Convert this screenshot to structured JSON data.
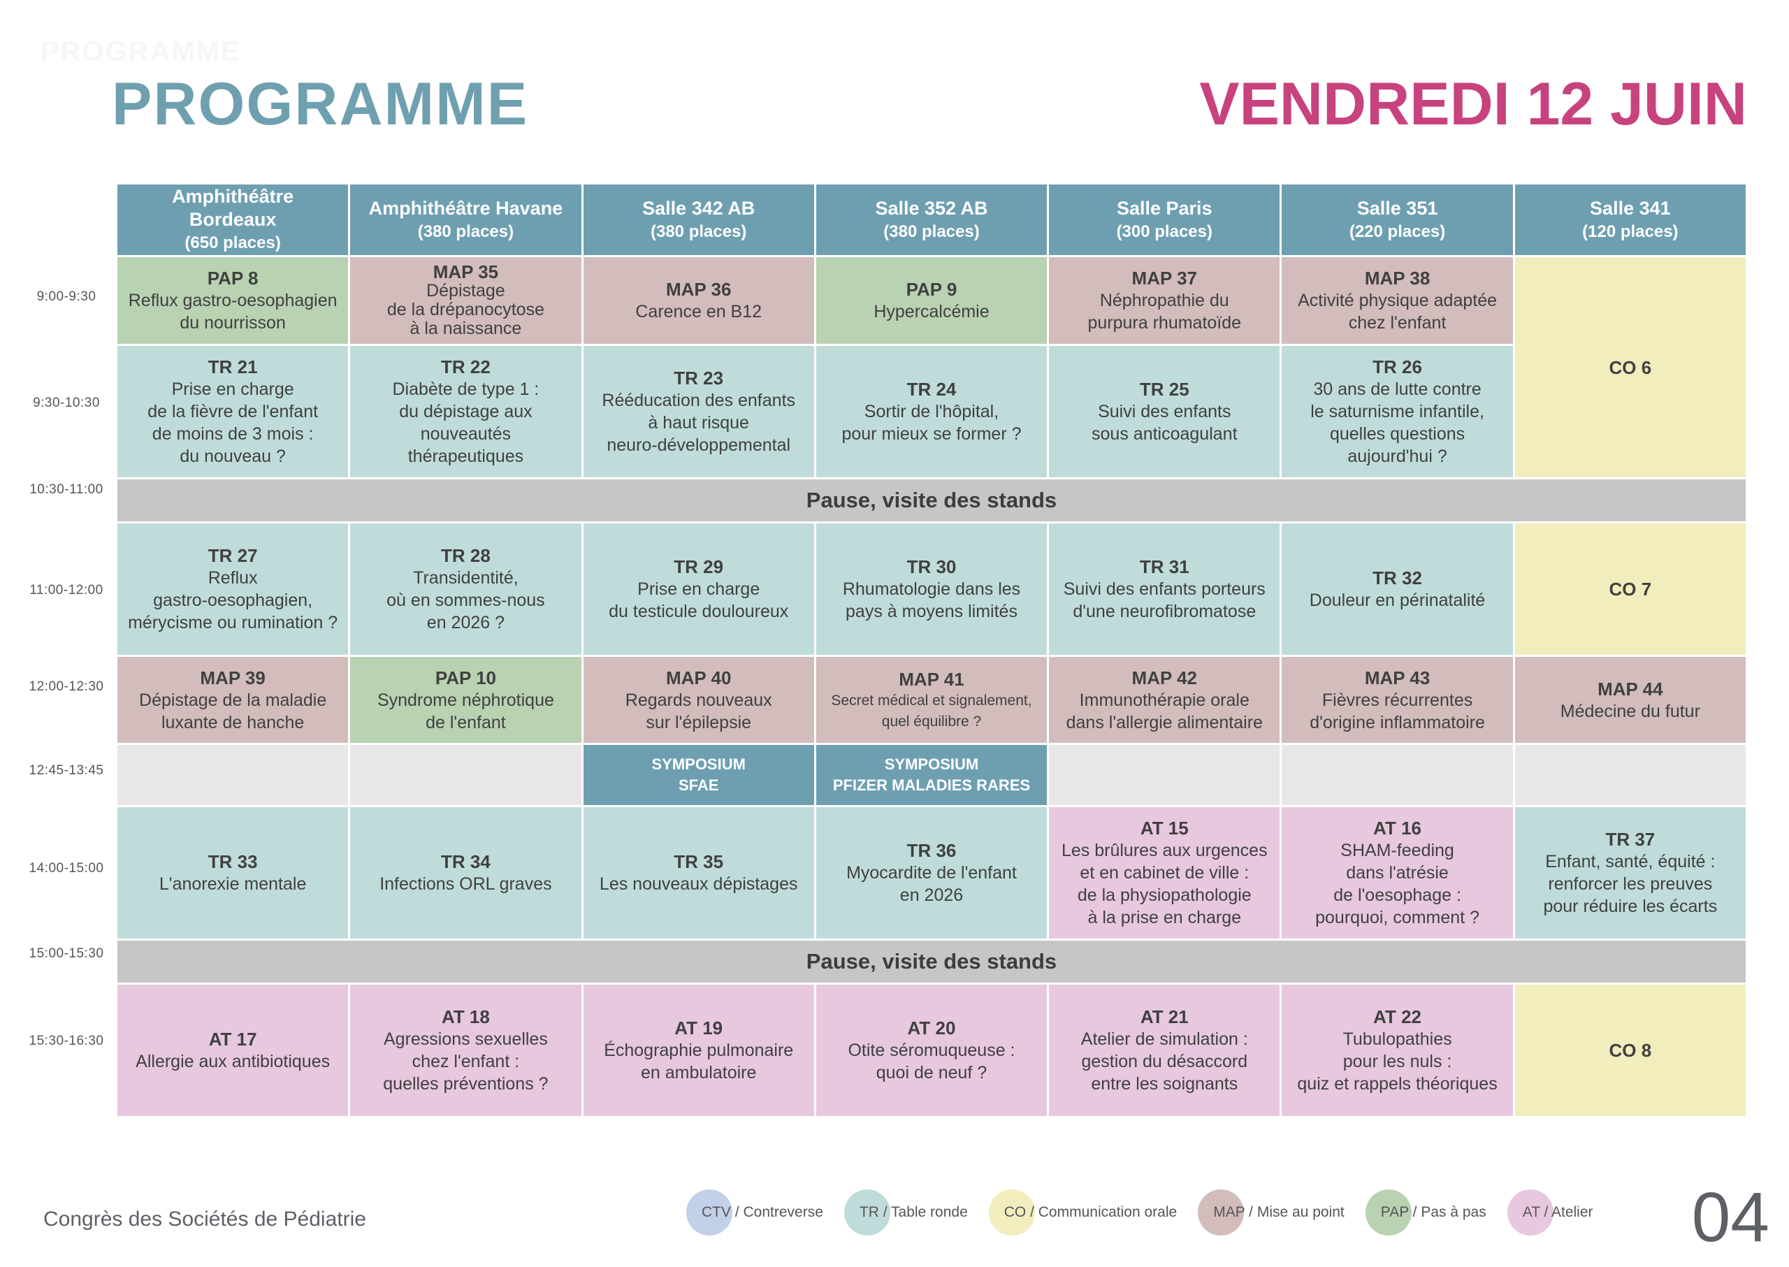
{
  "header": {
    "title": "PROGRAMME",
    "date": "VENDREDI 12 JUIN",
    "faint_text": "PROGRAMME"
  },
  "times": [
    "9:00-9:30",
    "9:30-10:30",
    "10:30-11:00",
    "11:00-12:00",
    "12:00-12:30",
    "12:45-13:45",
    "14:00-15:00",
    "15:00-15:30",
    "15:30-16:30"
  ],
  "rooms": [
    {
      "name": "Amphithéâtre Bordeaux",
      "capacity": "(650 places)"
    },
    {
      "name": "Amphithéâtre Havane",
      "capacity": "(380 places)"
    },
    {
      "name": "Salle 342 AB",
      "capacity": "(380 places)"
    },
    {
      "name": "Salle 352 AB",
      "capacity": "(380 places)"
    },
    {
      "name": "Salle Paris",
      "capacity": "(300 places)"
    },
    {
      "name": "Salle 351",
      "capacity": "(220 places)"
    },
    {
      "name": "Salle 341",
      "capacity": "(120 places)"
    }
  ],
  "sessions": {
    "s1": [
      {
        "code": "PAP 8",
        "title": "Reflux gastro-oesophagien\ndu nourrisson"
      },
      {
        "code": "MAP 35",
        "title": "Dépistage\nde la drépanocytose\nà la naissance"
      },
      {
        "code": "MAP 36",
        "title": "Carence en B12"
      },
      {
        "code": "PAP 9",
        "title": "Hypercalcémie"
      },
      {
        "code": "MAP 37",
        "title": "Néphropathie du\npurpura rhumatoïde"
      },
      {
        "code": "MAP 38",
        "title": "Activité physique adaptée\nchez l'enfant"
      }
    ],
    "co6": {
      "code": "CO 6"
    },
    "s2": [
      {
        "code": "TR 21",
        "title": "Prise en charge\nde la fièvre de l'enfant\nde moins de 3 mois :\ndu nouveau ?"
      },
      {
        "code": "TR 22",
        "title": "Diabète de type 1 :\ndu dépistage aux\nnouveautés\nthérapeutiques"
      },
      {
        "code": "TR 23",
        "title": "Rééducation des enfants\nà haut risque\nneuro-développemental"
      },
      {
        "code": "TR 24",
        "title": "Sortir de l'hôpital,\npour mieux se former ?"
      },
      {
        "code": "TR 25",
        "title": "Suivi des enfants\nsous anticoagulant"
      },
      {
        "code": "TR 26",
        "title": "30 ans de lutte contre\nle saturnisme infantile,\nquelles questions\naujourd'hui ?"
      }
    ],
    "pause1": "Pause, visite des stands",
    "s3": [
      {
        "code": "TR 27",
        "title": "Reflux\ngastro-oesophagien,\nmérycisme ou rumination ?"
      },
      {
        "code": "TR 28",
        "title": "Transidentité,\noù en sommes-nous\nen 2026 ?"
      },
      {
        "code": "TR 29",
        "title": "Prise en charge\ndu testicule douloureux"
      },
      {
        "code": "TR 30",
        "title": "Rhumatologie dans les\npays à moyens limités"
      },
      {
        "code": "TR 31",
        "title": "Suivi des enfants porteurs\nd'une neurofibromatose"
      },
      {
        "code": "TR 32",
        "title": "Douleur en périnatalité"
      },
      {
        "code": "CO 7",
        "title": ""
      }
    ],
    "s4": [
      {
        "code": "MAP 39",
        "title": "Dépistage de la maladie\nluxante de hanche"
      },
      {
        "code": "PAP 10",
        "title": "Syndrome néphrotique\nde l'enfant"
      },
      {
        "code": "MAP 40",
        "title": "Regards nouveaux\nsur l'épilepsie"
      },
      {
        "code": "MAP 41",
        "title": "Secret médical et signalement,\nquel équilibre ?"
      },
      {
        "code": "MAP 42",
        "title": "Immunothérapie orale\ndans l'allergie alimentaire"
      },
      {
        "code": "MAP 43",
        "title": "Fièvres récurrentes\nd'origine inflammatoire"
      },
      {
        "code": "MAP 44",
        "title": "Médecine du futur"
      }
    ],
    "s5": {
      "sym1": "SYMPOSIUM\nSFAE",
      "sym2": "SYMPOSIUM\nPFIZER MALADIES RARES"
    },
    "s6": [
      {
        "code": "TR 33",
        "title": "L'anorexie mentale"
      },
      {
        "code": "TR 34",
        "title": "Infections ORL graves"
      },
      {
        "code": "TR 35",
        "title": "Les nouveaux dépistages"
      },
      {
        "code": "TR 36",
        "title": "Myocardite de l'enfant\nen 2026"
      },
      {
        "code": "AT 15",
        "title": "Les brûlures aux urgences\net en cabinet de ville :\nde la physiopathologie\nà la prise en charge"
      },
      {
        "code": "AT 16",
        "title": "SHAM-feeding\ndans l'atrésie\nde l'oesophage :\npourquoi, comment ?"
      },
      {
        "code": "TR 37",
        "title": "Enfant, santé, équité :\nrenforcer les preuves\npour réduire les écarts"
      }
    ],
    "pause2": "Pause, visite des stands",
    "s7": [
      {
        "code": "AT 17",
        "title": "Allergie aux antibiotiques"
      },
      {
        "code": "AT 18",
        "title": "Agressions sexuelles\nchez l'enfant :\nquelles préventions ?"
      },
      {
        "code": "AT 19",
        "title": "Échographie pulmonaire\nen ambulatoire"
      },
      {
        "code": "AT 20",
        "title": "Otite séromuqueuse :\nquoi de neuf ?"
      },
      {
        "code": "AT 21",
        "title": "Atelier de simulation :\ngestion du désaccord\nentre les soignants"
      },
      {
        "code": "AT 22",
        "title": "Tubulopathies\npour les nuls :\nquiz et rappels théoriques"
      },
      {
        "code": "CO 8",
        "title": ""
      }
    ]
  },
  "legend": [
    {
      "abbr": "CTV",
      "label": " / Contreverse",
      "color": "#c3d0ea"
    },
    {
      "abbr": "TR",
      "label": " / Table ronde",
      "color": "#bfdcdb"
    },
    {
      "abbr": "CO",
      "label": " / Communication orale",
      "color": "#f2edbd"
    },
    {
      "abbr": "MAP",
      "label": " / Mise au point",
      "color": "#d2bcbc"
    },
    {
      "abbr": "PAP",
      "label": " / Pas à pas",
      "color": "#b8d2b2"
    },
    {
      "abbr": "AT",
      "label": " / Atelier",
      "color": "#e7c8df"
    }
  ],
  "footer": {
    "congress": "Congrès des Sociétés de Pédiatrie",
    "page_number": "04"
  }
}
